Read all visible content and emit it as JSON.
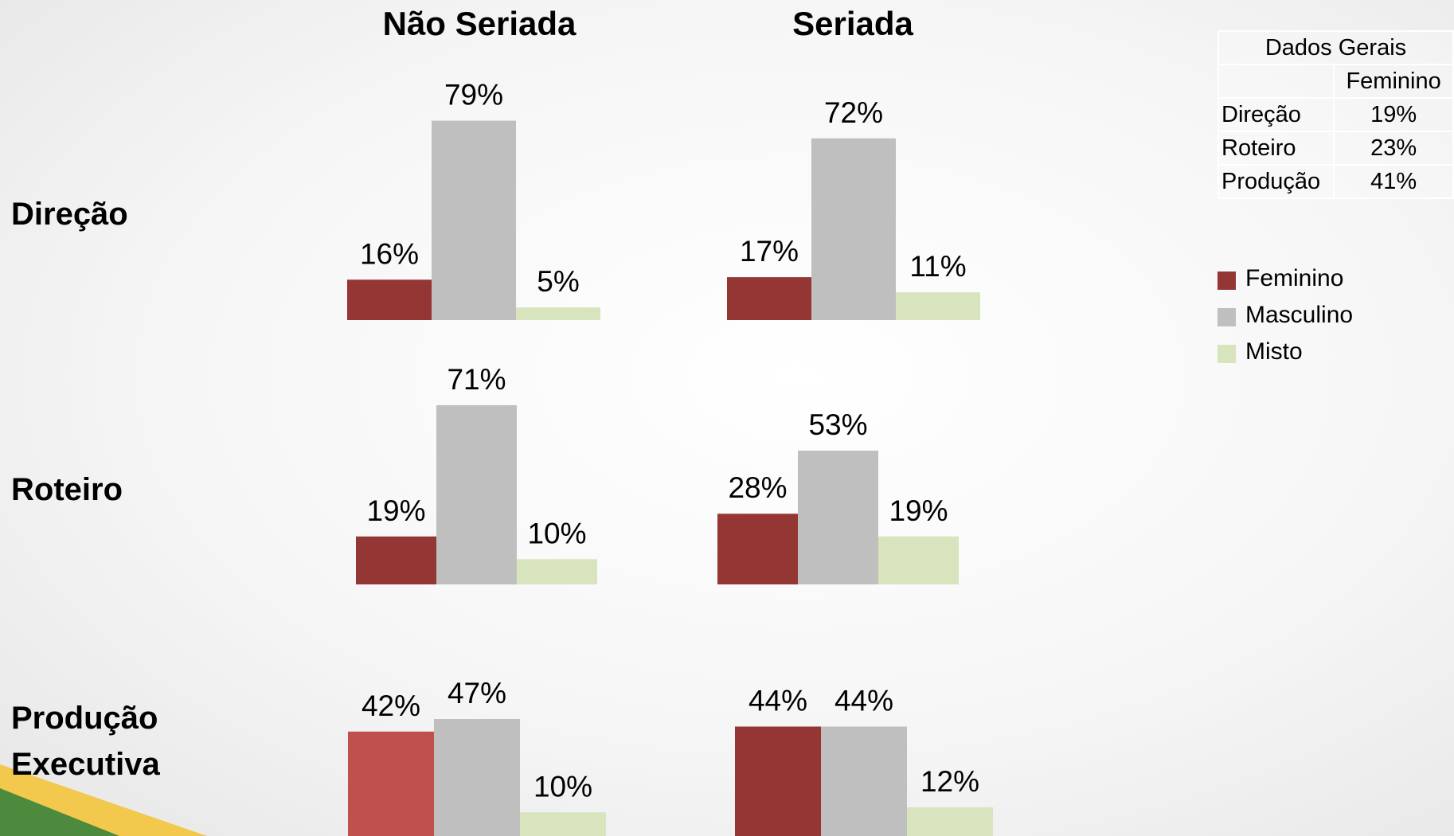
{
  "column_titles": [
    "Não Seriada",
    "Seriada"
  ],
  "row_labels": [
    "Direção",
    "Roteiro",
    "Produção Executiva"
  ],
  "legend": [
    {
      "name": "Feminino",
      "color": "#943634"
    },
    {
      "name": "Masculino",
      "color": "#bfbfbf"
    },
    {
      "name": "Misto",
      "color": "#d7e4bd"
    }
  ],
  "chart_data": [
    {
      "type": "bar",
      "values": [
        16,
        79,
        5
      ],
      "value_labels": [
        "16%",
        "79%",
        "5%"
      ],
      "colors": [
        "#943634",
        "#bfbfbf",
        "#d7e4bd"
      ]
    },
    {
      "type": "bar",
      "values": [
        17,
        72,
        11
      ],
      "value_labels": [
        "17%",
        "72%",
        "11%"
      ],
      "colors": [
        "#943634",
        "#bfbfbf",
        "#d7e4bd"
      ]
    },
    {
      "type": "bar",
      "values": [
        19,
        71,
        10
      ],
      "value_labels": [
        "19%",
        "71%",
        "10%"
      ],
      "colors": [
        "#943634",
        "#bfbfbf",
        "#d7e4bd"
      ]
    },
    {
      "type": "bar",
      "values": [
        28,
        53,
        19
      ],
      "value_labels": [
        "28%",
        "53%",
        "19%"
      ],
      "colors": [
        "#943634",
        "#bfbfbf",
        "#d7e4bd"
      ]
    },
    {
      "type": "bar",
      "values": [
        42,
        47,
        10
      ],
      "value_labels": [
        "42%",
        "47%",
        "10%"
      ],
      "colors": [
        "#c0504d",
        "#bfbfbf",
        "#d7e4bd"
      ]
    },
    {
      "type": "bar",
      "values": [
        44,
        44,
        12
      ],
      "value_labels": [
        "44%",
        "44%",
        "12%"
      ],
      "colors": [
        "#943634",
        "#bfbfbf",
        "#d7e4bd"
      ]
    }
  ],
  "table": {
    "title": "Dados Gerais",
    "columns": [
      "Feminino"
    ],
    "rows": [
      [
        "Direção",
        "19%"
      ],
      [
        "Roteiro",
        "23%"
      ],
      [
        "Produção",
        "41%"
      ]
    ]
  }
}
